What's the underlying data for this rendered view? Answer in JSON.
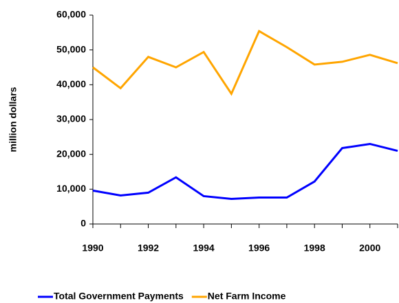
{
  "chart_data": {
    "type": "line",
    "y_label": "million dollars",
    "x": [
      1990,
      1991,
      1992,
      1993,
      1994,
      1995,
      1996,
      1997,
      1998,
      1999,
      2000,
      2001
    ],
    "xlim": [
      1990,
      2001
    ],
    "xticks": [
      1990,
      1992,
      1994,
      1996,
      1998,
      2000
    ],
    "ylim": [
      0,
      60000
    ],
    "yticks": [
      0,
      {
        "value": 10000,
        "label": "10,000"
      },
      {
        "value": 20000,
        "label": "20,000"
      },
      {
        "value": 30000,
        "label": "30,000"
      },
      {
        "value": 40000,
        "label": "40,000"
      },
      {
        "value": 50000,
        "label": "50,000"
      },
      {
        "value": 60000,
        "label": "60,000"
      }
    ],
    "legend": "bottom",
    "series": [
      {
        "name": "Total Government Payments",
        "color": "#0000ff",
        "values": [
          9600,
          8200,
          9000,
          13400,
          8000,
          7200,
          7600,
          7600,
          12200,
          21800,
          23000,
          21000
        ]
      },
      {
        "name": "Net Farm Income",
        "color": "#ffa500",
        "values": [
          45000,
          39000,
          48000,
          45000,
          49400,
          37400,
          55400,
          50800,
          45800,
          46600,
          48600,
          46200
        ]
      }
    ]
  }
}
